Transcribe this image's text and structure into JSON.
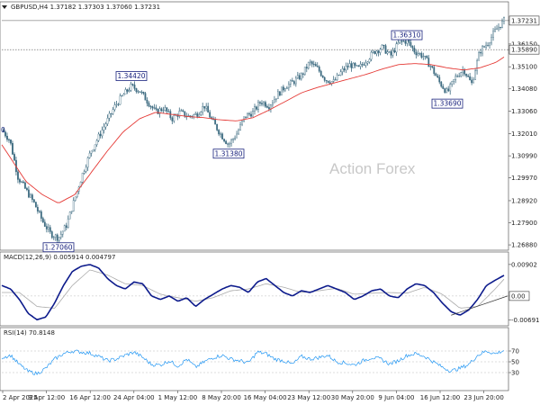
{
  "chart_data": [
    {
      "type": "candlestick",
      "header": "GBPUSD,H4  1.37182 1.37303 1.37060 1.37231",
      "ylim": [
        1.268,
        1.376
      ],
      "y_ticks": [
        "1.37231",
        "1.36150",
        "1.35890",
        "1.35100",
        "1.34080",
        "1.33060",
        "1.32010",
        "1.30990",
        "1.29970",
        "1.28920",
        "1.27900",
        "1.26880"
      ],
      "current_price": "1.37231",
      "reference_price": "1.35890",
      "close_path": [
        [
          0,
          1.322
        ],
        [
          1,
          1.317
        ],
        [
          2,
          1.3
        ],
        [
          3,
          1.294
        ],
        [
          4,
          1.288
        ],
        [
          5,
          1.28
        ],
        [
          6,
          1.274
        ],
        [
          7,
          1.272
        ],
        [
          8,
          1.278
        ],
        [
          9,
          1.29
        ],
        [
          10,
          1.302
        ],
        [
          11,
          1.312
        ],
        [
          12,
          1.319
        ],
        [
          13,
          1.326
        ],
        [
          14,
          1.333
        ],
        [
          15,
          1.338
        ],
        [
          16,
          1.342
        ],
        [
          17,
          1.34
        ],
        [
          18,
          1.335
        ],
        [
          19,
          1.33
        ],
        [
          20,
          1.332
        ],
        [
          21,
          1.327
        ],
        [
          22,
          1.33
        ],
        [
          23,
          1.328
        ],
        [
          24,
          1.329
        ],
        [
          25,
          1.333
        ],
        [
          26,
          1.326
        ],
        [
          27,
          1.32
        ],
        [
          28,
          1.315
        ],
        [
          29,
          1.32
        ],
        [
          30,
          1.328
        ],
        [
          31,
          1.33
        ],
        [
          32,
          1.335
        ],
        [
          33,
          1.333
        ],
        [
          34,
          1.338
        ],
        [
          35,
          1.342
        ],
        [
          36,
          1.344
        ],
        [
          37,
          1.347
        ],
        [
          38,
          1.353
        ],
        [
          39,
          1.35
        ],
        [
          40,
          1.345
        ],
        [
          41,
          1.344
        ],
        [
          42,
          1.349
        ],
        [
          43,
          1.352
        ],
        [
          44,
          1.35
        ],
        [
          45,
          1.354
        ],
        [
          46,
          1.358
        ],
        [
          47,
          1.36
        ],
        [
          48,
          1.356
        ],
        [
          49,
          1.362
        ],
        [
          50,
          1.363
        ],
        [
          51,
          1.358
        ],
        [
          52,
          1.356
        ],
        [
          53,
          1.351
        ],
        [
          54,
          1.344
        ],
        [
          55,
          1.339
        ],
        [
          56,
          1.346
        ],
        [
          57,
          1.35
        ],
        [
          58,
          1.343
        ],
        [
          59,
          1.358
        ],
        [
          60,
          1.362
        ],
        [
          61,
          1.368
        ],
        [
          62,
          1.3723
        ]
      ],
      "ma_path": [
        [
          0,
          1.315
        ],
        [
          3,
          1.298
        ],
        [
          5,
          1.292
        ],
        [
          7,
          1.288
        ],
        [
          9,
          1.292
        ],
        [
          11,
          1.302
        ],
        [
          13,
          1.312
        ],
        [
          15,
          1.321
        ],
        [
          17,
          1.327
        ],
        [
          19,
          1.33
        ],
        [
          21,
          1.329
        ],
        [
          23,
          1.328
        ],
        [
          25,
          1.3275
        ],
        [
          27,
          1.3265
        ],
        [
          29,
          1.326
        ],
        [
          31,
          1.3275
        ],
        [
          33,
          1.331
        ],
        [
          35,
          1.335
        ],
        [
          37,
          1.339
        ],
        [
          39,
          1.3415
        ],
        [
          41,
          1.3435
        ],
        [
          43,
          1.3455
        ],
        [
          45,
          1.3475
        ],
        [
          47,
          1.35
        ],
        [
          49,
          1.352
        ],
        [
          51,
          1.3525
        ],
        [
          53,
          1.352
        ],
        [
          55,
          1.3505
        ],
        [
          57,
          1.3495
        ],
        [
          59,
          1.3505
        ],
        [
          61,
          1.353
        ],
        [
          62,
          1.3555
        ]
      ],
      "annotations": [
        {
          "label": "1.34420",
          "x": 16,
          "y": 1.3442,
          "pos": "above"
        },
        {
          "label": "1.31380",
          "x": 28,
          "y": 1.3138,
          "pos": "below"
        },
        {
          "label": "1.36310",
          "x": 50,
          "y": 1.3631,
          "pos": "above"
        },
        {
          "label": "1.33690",
          "x": 55,
          "y": 1.3369,
          "pos": "below"
        },
        {
          "label": "1.27060",
          "x": 7,
          "y": 1.2706,
          "pos": "below"
        }
      ],
      "left_edge_label": "0",
      "watermark": "Action Forex"
    },
    {
      "type": "line",
      "header": "MACD(12,26,9) 0.005914 0.004797",
      "ylim": [
        -0.0075,
        0.0095
      ],
      "y_ticks": [
        "0.00902",
        "0.00",
        "-0.006915"
      ],
      "zero_tick": "0.00",
      "macd": [
        [
          0,
          0.003
        ],
        [
          1,
          0.002
        ],
        [
          2,
          -0.001
        ],
        [
          3,
          -0.005
        ],
        [
          4,
          -0.0068
        ],
        [
          5,
          -0.006
        ],
        [
          6,
          -0.002
        ],
        [
          7,
          0.003
        ],
        [
          8,
          0.007
        ],
        [
          9,
          0.0085
        ],
        [
          10,
          0.009
        ],
        [
          11,
          0.008
        ],
        [
          12,
          0.005
        ],
        [
          13,
          0.003
        ],
        [
          14,
          0.002
        ],
        [
          15,
          0.004
        ],
        [
          16,
          0.0035
        ],
        [
          17,
          0.0
        ],
        [
          18,
          -0.001
        ],
        [
          19,
          0.0
        ],
        [
          20,
          -0.0015
        ],
        [
          21,
          -0.0005
        ],
        [
          22,
          -0.003
        ],
        [
          23,
          -0.001
        ],
        [
          24,
          0.0005
        ],
        [
          25,
          0.002
        ],
        [
          26,
          0.003
        ],
        [
          27,
          0.0025
        ],
        [
          28,
          0.001
        ],
        [
          29,
          0.004
        ],
        [
          30,
          0.005
        ],
        [
          31,
          0.003
        ],
        [
          32,
          0.001
        ],
        [
          33,
          0.0
        ],
        [
          34,
          0.0015
        ],
        [
          35,
          0.001
        ],
        [
          36,
          0.002
        ],
        [
          37,
          0.003
        ],
        [
          38,
          0.002
        ],
        [
          39,
          0.001
        ],
        [
          40,
          -0.001
        ],
        [
          41,
          0.0
        ],
        [
          42,
          0.0015
        ],
        [
          43,
          0.002
        ],
        [
          44,
          0.0
        ],
        [
          45,
          -0.0005
        ],
        [
          46,
          0.002
        ],
        [
          47,
          0.0035
        ],
        [
          48,
          0.003
        ],
        [
          49,
          0.001
        ],
        [
          50,
          -0.002
        ],
        [
          51,
          -0.0045
        ],
        [
          52,
          -0.0055
        ],
        [
          53,
          -0.004
        ],
        [
          54,
          -0.001
        ],
        [
          55,
          0.003
        ],
        [
          56,
          0.0045
        ],
        [
          57,
          0.0059
        ]
      ],
      "signal": [
        [
          0,
          0.001
        ],
        [
          2,
          0.001
        ],
        [
          4,
          -0.003
        ],
        [
          6,
          -0.0035
        ],
        [
          8,
          0.003
        ],
        [
          10,
          0.0075
        ],
        [
          12,
          0.006
        ],
        [
          14,
          0.0035
        ],
        [
          16,
          0.003
        ],
        [
          18,
          0.0005
        ],
        [
          20,
          -0.0005
        ],
        [
          22,
          -0.0015
        ],
        [
          24,
          -0.0005
        ],
        [
          26,
          0.0015
        ],
        [
          28,
          0.002
        ],
        [
          30,
          0.0035
        ],
        [
          32,
          0.0025
        ],
        [
          34,
          0.001
        ],
        [
          36,
          0.0015
        ],
        [
          38,
          0.0022
        ],
        [
          40,
          0.0005
        ],
        [
          42,
          0.0008
        ],
        [
          44,
          0.001
        ],
        [
          46,
          0.0008
        ],
        [
          48,
          0.0025
        ],
        [
          50,
          0.0005
        ],
        [
          52,
          -0.0035
        ],
        [
          54,
          -0.003
        ],
        [
          56,
          0.002
        ],
        [
          57,
          0.0048
        ]
      ],
      "trendline": [
        [
          51,
          -0.0055
        ],
        [
          57,
          0.0
        ]
      ]
    },
    {
      "type": "line",
      "header": "RSI(14) 70.8148",
      "ylim": [
        0,
        100
      ],
      "y_ticks": [
        "70",
        "50",
        "30"
      ],
      "levels": [
        70,
        50,
        30
      ],
      "rsi": [
        [
          0,
          58
        ],
        [
          1,
          62
        ],
        [
          2,
          45
        ],
        [
          3,
          32
        ],
        [
          4,
          28
        ],
        [
          5,
          38
        ],
        [
          6,
          55
        ],
        [
          7,
          65
        ],
        [
          8,
          70
        ],
        [
          9,
          68
        ],
        [
          10,
          66
        ],
        [
          11,
          60
        ],
        [
          12,
          52
        ],
        [
          13,
          55
        ],
        [
          14,
          62
        ],
        [
          15,
          68
        ],
        [
          16,
          58
        ],
        [
          17,
          45
        ],
        [
          18,
          44
        ],
        [
          19,
          52
        ],
        [
          20,
          42
        ],
        [
          21,
          55
        ],
        [
          22,
          40
        ],
        [
          23,
          50
        ],
        [
          24,
          58
        ],
        [
          25,
          62
        ],
        [
          26,
          55
        ],
        [
          27,
          52
        ],
        [
          28,
          48
        ],
        [
          29,
          68
        ],
        [
          30,
          65
        ],
        [
          31,
          55
        ],
        [
          32,
          52
        ],
        [
          33,
          45
        ],
        [
          34,
          60
        ],
        [
          35,
          55
        ],
        [
          36,
          58
        ],
        [
          37,
          62
        ],
        [
          38,
          50
        ],
        [
          39,
          48
        ],
        [
          40,
          44
        ],
        [
          41,
          52
        ],
        [
          42,
          58
        ],
        [
          43,
          55
        ],
        [
          44,
          46
        ],
        [
          45,
          52
        ],
        [
          46,
          62
        ],
        [
          47,
          65
        ],
        [
          48,
          60
        ],
        [
          49,
          50
        ],
        [
          50,
          40
        ],
        [
          51,
          33
        ],
        [
          52,
          38
        ],
        [
          53,
          45
        ],
        [
          54,
          62
        ],
        [
          55,
          70
        ],
        [
          56,
          65
        ],
        [
          57,
          71
        ]
      ],
      "x_ticks": [
        "2 Apr 2025",
        "9 Apr 12:00",
        "16 Apr 12:00",
        "24 Apr 04:00",
        "1 May 12:00",
        "8 May 20:00",
        "16 May 04:00",
        "23 May 12:00",
        "30 May 20:00",
        "9 Jun 04:00",
        "16 Jun 12:00",
        "23 Jun 20:00"
      ]
    }
  ],
  "colors": {
    "candle": "#3d6b80",
    "ma": "#e53935",
    "macd": "#0d1b8c",
    "signal": "#aaaaaa",
    "rsi": "#2196f3",
    "annotation": "#1a237e"
  }
}
